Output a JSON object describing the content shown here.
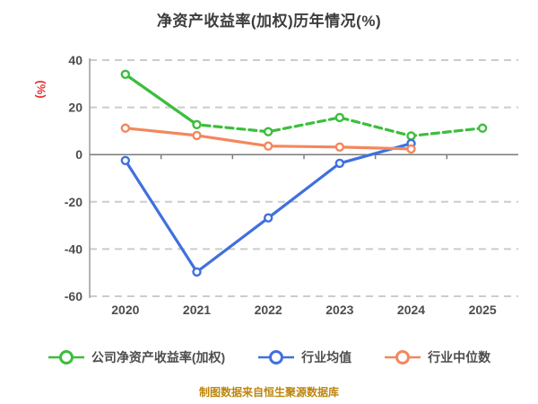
{
  "header": {
    "title": "净资产收益率(加权)历年情况(%)"
  },
  "axes": {
    "unit_label": "(%)",
    "unit_color": "#e03232",
    "label_color": "#4d4d4d",
    "y_axis_color": "#9a9a9a",
    "x_axis_color": "#7a7a7a",
    "grid_color": "#cccccc"
  },
  "chart_data": {
    "type": "line",
    "title": "净资产收益率(加权)历年情况(%)",
    "ylabel": "(%)",
    "categories": [
      "2020",
      "2021",
      "2022",
      "2023",
      "2024",
      "2025"
    ],
    "series": [
      {
        "name": "公司净资产收益率(加权)",
        "color": "#3cbe3c",
        "line_style": "dashed",
        "solid_first_segment": true,
        "values": [
          34.0,
          12.7,
          9.7,
          15.7,
          7.9,
          11.2
        ]
      },
      {
        "name": "行业均值",
        "color": "#4070de",
        "line_style": "solid",
        "solid_first_segment": false,
        "values": [
          -2.5,
          -49.7,
          -26.8,
          -3.7,
          4.7,
          null
        ]
      },
      {
        "name": "行业中位数",
        "color": "#f4875c",
        "line_style": "solid",
        "solid_first_segment": false,
        "values": [
          11.2,
          8.1,
          3.6,
          3.2,
          2.4,
          null
        ]
      }
    ],
    "ylim": [
      -60,
      40
    ],
    "yticks": [
      40,
      20,
      0,
      -20,
      -40,
      -60
    ],
    "grid": "horizontal dashed",
    "legend_position": "bottom"
  },
  "footer": {
    "caption": "制图数据来自恒生聚源数据库",
    "color": "#bd860d"
  }
}
